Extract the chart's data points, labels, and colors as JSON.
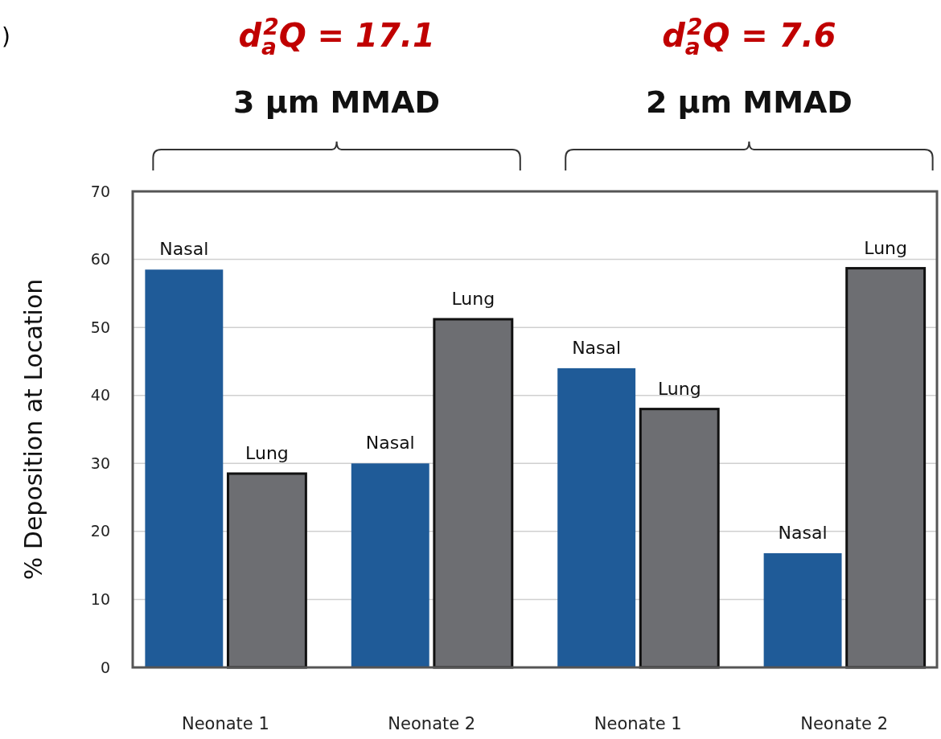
{
  "chart_data": {
    "type": "bar",
    "ylabel": "% Deposition at Location",
    "categories": [
      "Neonate 1",
      "Neonate 2",
      "Neonate 1",
      "Neonate 2"
    ],
    "series": [
      {
        "name": "Nasal",
        "color": "#1f5b98",
        "values": [
          58.5,
          30,
          44,
          16.8
        ]
      },
      {
        "name": "Lung",
        "color": "#6d6e72",
        "values": [
          28.5,
          51.2,
          38,
          58.7
        ]
      }
    ],
    "ylim": [
      0,
      70
    ],
    "yticks": [
      0,
      10,
      20,
      30,
      40,
      50,
      60,
      70
    ],
    "grid": "y",
    "annotations": [
      ")",
      "d$_{a}$$^{2}$Q = 17.1",
      "3 µm MMAD",
      "d$_{a}$$^{2}$Q = 7.6",
      "2 µm MMAD"
    ]
  }
}
